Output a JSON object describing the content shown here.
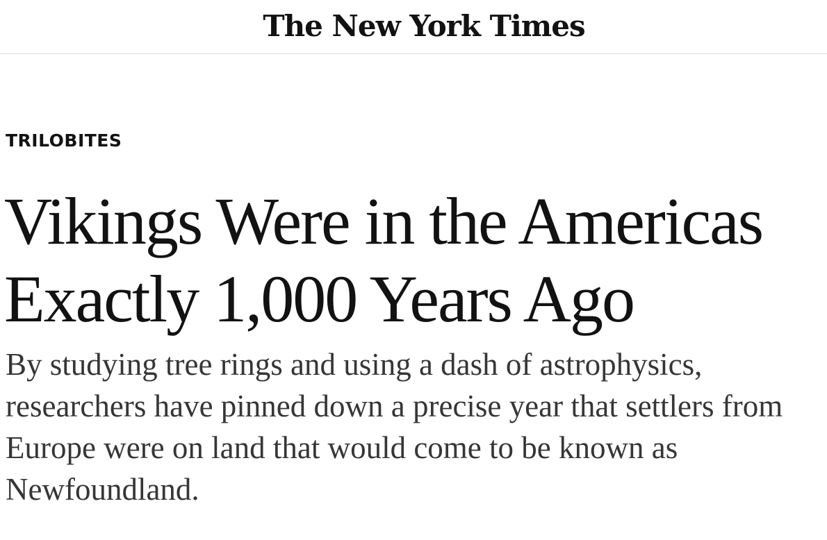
{
  "masthead": {
    "logo_text": "The New York Times"
  },
  "article": {
    "kicker": "Trilobites",
    "headline": "Vikings Were in the Americas Exactly 1,000 Years Ago",
    "summary": "By studying tree rings and using a dash of astrophysics, researchers have pinned down a precise year that settlers from Europe were on land that would come to be known as Newfoundland."
  }
}
